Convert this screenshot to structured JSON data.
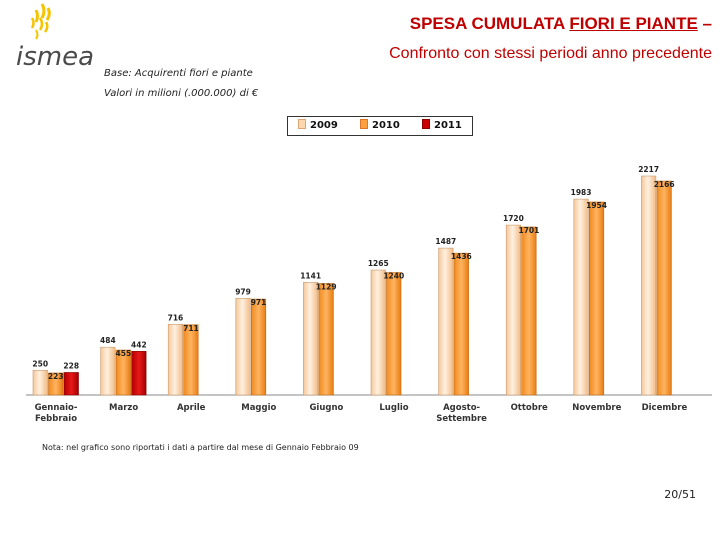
{
  "header": {
    "logo_text": "ismea",
    "title_pre": "SPESA CUMULATA ",
    "title_underlined": "FIORI E PIANTE",
    "title_post": " –",
    "subtitle": "Confronto con stessi periodi anno precedente"
  },
  "info": {
    "base": "Base: Acquirenti fiori e piante",
    "values": "Valori  in milioni (.000.000) di €"
  },
  "legend": [
    {
      "label": "2009",
      "color": "#fcd6ac"
    },
    {
      "label": "2010",
      "color": "#fca040"
    },
    {
      "label": "2011",
      "color": "#cc0000"
    }
  ],
  "chart_data": {
    "type": "bar",
    "title": "SPESA CUMULATA FIORI E PIANTE",
    "ylabel": "Valori in milioni di €",
    "xlabel": "",
    "ylim": [
      0,
      2300
    ],
    "grid": false,
    "legend_position": "top-center",
    "categories": [
      "Gennaio-Febbraio",
      "Marzo",
      "Aprile",
      "Maggio",
      "Giugno",
      "Luglio",
      "Agosto-Settembre",
      "Ottobre",
      "Novembre",
      "Dicembre"
    ],
    "category_lines": [
      [
        "Gennaio-",
        "Febbraio"
      ],
      [
        "Marzo"
      ],
      [
        "Aprile"
      ],
      [
        "Maggio"
      ],
      [
        "Giugno"
      ],
      [
        "Luglio"
      ],
      [
        "Agosto-",
        "Settembre"
      ],
      [
        "Ottobre"
      ],
      [
        "Novembre"
      ],
      [
        "Dicembre"
      ]
    ],
    "series": [
      {
        "name": "2009",
        "values": [
          250,
          484,
          716,
          979,
          1141,
          1265,
          1487,
          1720,
          1983,
          2217
        ]
      },
      {
        "name": "2010",
        "values": [
          223,
          455,
          711,
          971,
          1129,
          1240,
          1436,
          1701,
          1954,
          2166
        ]
      },
      {
        "name": "2011",
        "values": [
          228,
          442,
          null,
          null,
          null,
          null,
          null,
          null,
          null,
          null
        ]
      }
    ]
  },
  "footer": {
    "note": "Nota: nel grafico sono riportati i dati a partire dal mese di Gennaio Febbraio 09",
    "page": "20/51"
  }
}
